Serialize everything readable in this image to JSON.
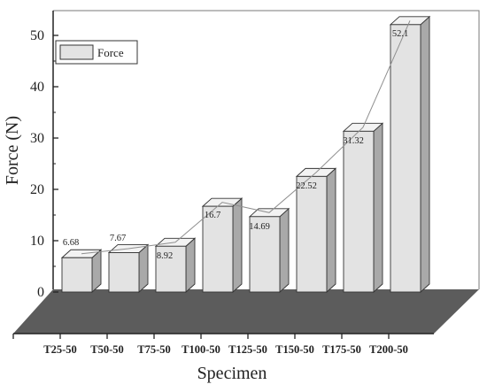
{
  "chart_data": {
    "type": "bar",
    "title": "",
    "xlabel": "Specimen",
    "ylabel": "Force (N)",
    "ylim": [
      0,
      55
    ],
    "y_ticks": [
      "0",
      "10",
      "20",
      "30",
      "40",
      "50"
    ],
    "categories": [
      "T25-50",
      "T50-50",
      "T75-50",
      "T100-50",
      "T125-50",
      "T150-50",
      "T175-50",
      "T200-50"
    ],
    "series": [
      {
        "name": "Force",
        "values": [
          6.68,
          7.67,
          8.92,
          16.7,
          14.69,
          22.52,
          31.32,
          52.1
        ],
        "labels": [
          "6.68",
          "7.67",
          "8.92",
          "16.7",
          "14.69",
          "22.52",
          "31.32",
          "52.1"
        ]
      }
    ],
    "trend_line": true,
    "style": "3d-bars",
    "legend_position": "top-left",
    "grid": false,
    "colors": {
      "bar_front": "#e3e3e3",
      "bar_side": "#a9a9a9",
      "bar_top": "#f3f3f3",
      "floor": "#5c5c5c",
      "trend": "#8f8f8f"
    }
  }
}
